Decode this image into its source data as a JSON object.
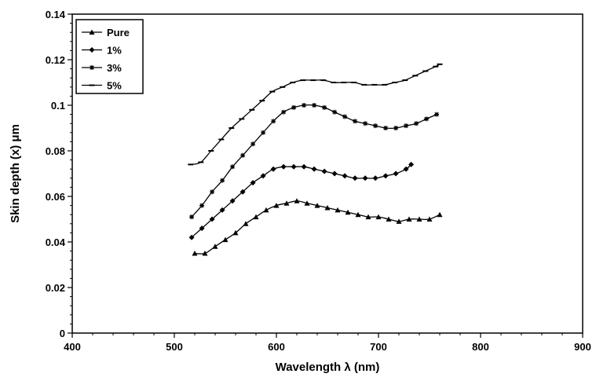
{
  "chart_data": {
    "type": "line",
    "xlabel": "Wavelength λ (nm)",
    "ylabel": "Skin depth (x) μm",
    "xlim": [
      400,
      900
    ],
    "ylim": [
      0,
      0.14
    ],
    "x_ticks": [
      "400",
      "500",
      "600",
      "700",
      "800",
      "900"
    ],
    "y_ticks": [
      "0",
      "0.02",
      "0.04",
      "0.06",
      "0.08",
      "0.1",
      "0.12",
      "0.14"
    ],
    "grid": false,
    "legend_position": "top-left",
    "series": [
      {
        "name": "Pure",
        "marker": "triangle",
        "x": [
          520,
          530,
          540,
          550,
          560,
          570,
          580,
          590,
          600,
          610,
          620,
          630,
          640,
          650,
          660,
          670,
          680,
          690,
          700,
          710,
          720,
          730,
          740,
          750,
          760
        ],
        "values": [
          0.035,
          0.035,
          0.038,
          0.041,
          0.044,
          0.048,
          0.051,
          0.054,
          0.056,
          0.057,
          0.058,
          0.057,
          0.056,
          0.055,
          0.054,
          0.053,
          0.052,
          0.051,
          0.051,
          0.05,
          0.049,
          0.05,
          0.05,
          0.05,
          0.052
        ]
      },
      {
        "name": "1%",
        "marker": "diamond",
        "x": [
          517,
          527,
          537,
          547,
          557,
          567,
          577,
          587,
          597,
          607,
          617,
          627,
          637,
          647,
          657,
          667,
          677,
          687,
          697,
          707,
          717,
          727,
          732
        ],
        "values": [
          0.042,
          0.046,
          0.05,
          0.054,
          0.058,
          0.062,
          0.066,
          0.069,
          0.072,
          0.073,
          0.073,
          0.073,
          0.072,
          0.071,
          0.07,
          0.069,
          0.068,
          0.068,
          0.068,
          0.069,
          0.07,
          0.072,
          0.074
        ]
      },
      {
        "name": "3%",
        "marker": "star",
        "x": [
          517,
          527,
          537,
          547,
          557,
          567,
          577,
          587,
          597,
          607,
          617,
          627,
          637,
          647,
          657,
          667,
          677,
          687,
          697,
          707,
          717,
          727,
          737,
          747,
          757
        ],
        "values": [
          0.051,
          0.056,
          0.062,
          0.067,
          0.073,
          0.078,
          0.083,
          0.088,
          0.093,
          0.097,
          0.099,
          0.1,
          0.1,
          0.099,
          0.097,
          0.095,
          0.093,
          0.092,
          0.091,
          0.09,
          0.09,
          0.091,
          0.092,
          0.094,
          0.096
        ]
      },
      {
        "name": "5%",
        "marker": "dash",
        "x": [
          516,
          526,
          536,
          546,
          556,
          566,
          576,
          586,
          596,
          606,
          616,
          626,
          636,
          646,
          656,
          666,
          676,
          686,
          696,
          706,
          716,
          726,
          736,
          746,
          756,
          760
        ],
        "values": [
          0.074,
          0.075,
          0.08,
          0.085,
          0.09,
          0.094,
          0.098,
          0.102,
          0.106,
          0.108,
          0.11,
          0.111,
          0.111,
          0.111,
          0.11,
          0.11,
          0.11,
          0.109,
          0.109,
          0.109,
          0.11,
          0.111,
          0.113,
          0.115,
          0.117,
          0.118
        ]
      }
    ]
  }
}
